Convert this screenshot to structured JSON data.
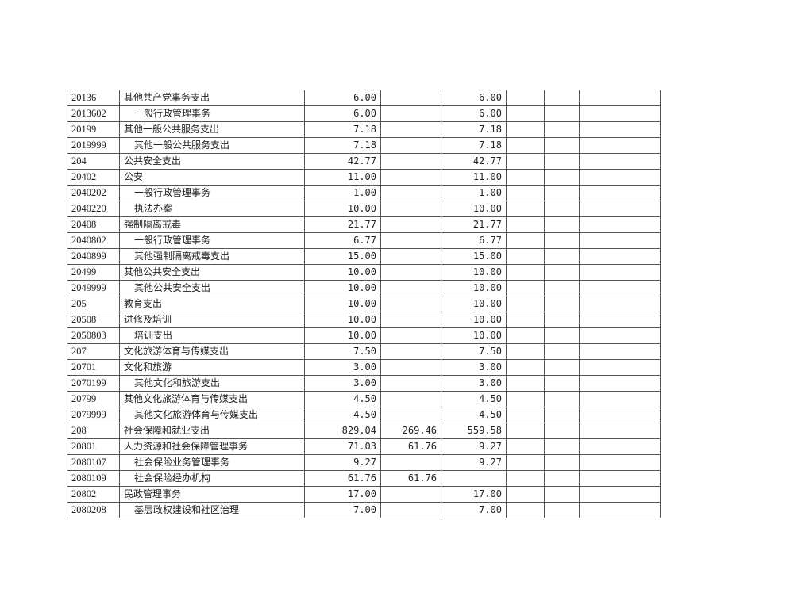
{
  "rows": [
    [
      "20136",
      "其他共产党事务支出",
      false,
      "6.00",
      "",
      "6.00"
    ],
    [
      "2013602",
      "一般行政管理事务",
      true,
      "6.00",
      "",
      "6.00"
    ],
    [
      "20199",
      "其他一般公共服务支出",
      false,
      "7.18",
      "",
      "7.18"
    ],
    [
      "2019999",
      "其他一般公共服务支出",
      true,
      "7.18",
      "",
      "7.18"
    ],
    [
      "204",
      "公共安全支出",
      false,
      "42.77",
      "",
      "42.77"
    ],
    [
      "20402",
      "公安",
      false,
      "11.00",
      "",
      "11.00"
    ],
    [
      "2040202",
      "一般行政管理事务",
      true,
      "1.00",
      "",
      "1.00"
    ],
    [
      "2040220",
      "执法办案",
      true,
      "10.00",
      "",
      "10.00"
    ],
    [
      "20408",
      "强制隔离戒毒",
      false,
      "21.77",
      "",
      "21.77"
    ],
    [
      "2040802",
      "一般行政管理事务",
      true,
      "6.77",
      "",
      "6.77"
    ],
    [
      "2040899",
      "其他强制隔离戒毒支出",
      true,
      "15.00",
      "",
      "15.00"
    ],
    [
      "20499",
      "其他公共安全支出",
      false,
      "10.00",
      "",
      "10.00"
    ],
    [
      "2049999",
      "其他公共安全支出",
      true,
      "10.00",
      "",
      "10.00"
    ],
    [
      "205",
      "教育支出",
      false,
      "10.00",
      "",
      "10.00"
    ],
    [
      "20508",
      "进修及培训",
      false,
      "10.00",
      "",
      "10.00"
    ],
    [
      "2050803",
      "培训支出",
      true,
      "10.00",
      "",
      "10.00"
    ],
    [
      "207",
      "文化旅游体育与传媒支出",
      false,
      "7.50",
      "",
      "7.50"
    ],
    [
      "20701",
      "文化和旅游",
      false,
      "3.00",
      "",
      "3.00"
    ],
    [
      "2070199",
      "其他文化和旅游支出",
      true,
      "3.00",
      "",
      "3.00"
    ],
    [
      "20799",
      "其他文化旅游体育与传媒支出",
      false,
      "4.50",
      "",
      "4.50"
    ],
    [
      "2079999",
      "其他文化旅游体育与传媒支出",
      true,
      "4.50",
      "",
      "4.50"
    ],
    [
      "208",
      "社会保障和就业支出",
      false,
      "829.04",
      "269.46",
      "559.58"
    ],
    [
      "20801",
      "人力资源和社会保障管理事务",
      false,
      "71.03",
      "61.76",
      "9.27"
    ],
    [
      "2080107",
      "社会保险业务管理事务",
      true,
      "9.27",
      "",
      "9.27"
    ],
    [
      "2080109",
      "社会保险经办机构",
      true,
      "61.76",
      "61.76",
      ""
    ],
    [
      "20802",
      "民政管理事务",
      false,
      "17.00",
      "",
      "17.00"
    ],
    [
      "2080208",
      "基层政权建设和社区治理",
      true,
      "7.00",
      "",
      "7.00"
    ]
  ]
}
